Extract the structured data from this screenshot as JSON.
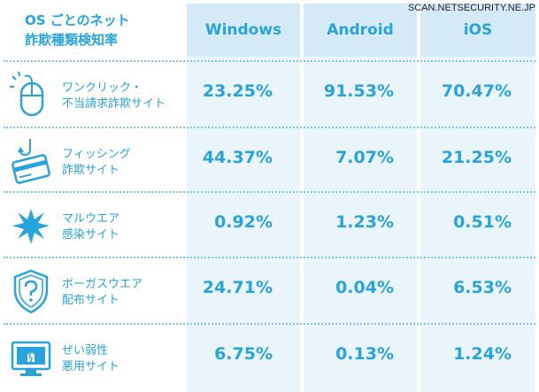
{
  "watermark": "SCAN.NETSECURITY.NE.JP",
  "title": {
    "line1": "OS ごとのネット",
    "line2": "詐欺種類検知率"
  },
  "columns": [
    "Windows",
    "Android",
    "iOS"
  ],
  "rows": [
    {
      "icon": "mouse-click-icon",
      "label1": "ワンクリック・",
      "label2": "不当請求詐欺サイト",
      "values": [
        "23.25%",
        "91.53%",
        "70.47%"
      ]
    },
    {
      "icon": "credit-card-hook-icon",
      "label1": "フィッシング",
      "label2": "詐欺サイト",
      "values": [
        "44.37%",
        "7.07%",
        "21.25%"
      ]
    },
    {
      "icon": "malware-splat-icon",
      "label1": "マルウエア",
      "label2": "感染サイト",
      "values": [
        "0.92%",
        "1.23%",
        "0.51%"
      ]
    },
    {
      "icon": "question-shield-icon",
      "label1": "ボーガスウエア",
      "label2": "配布サイト",
      "values": [
        "24.71%",
        "0.04%",
        "6.53%"
      ]
    },
    {
      "icon": "vulnerable-monitor-icon",
      "label1": "ぜい弱性",
      "label2": "悪用サイト",
      "values": [
        "6.75%",
        "0.13%",
        "1.24%"
      ]
    }
  ],
  "colors": {
    "accent": "#29a3dc",
    "column_bg": "#eaf4fb",
    "header_bg": "#d5eaf7",
    "divider": "#7cc4ea"
  }
}
